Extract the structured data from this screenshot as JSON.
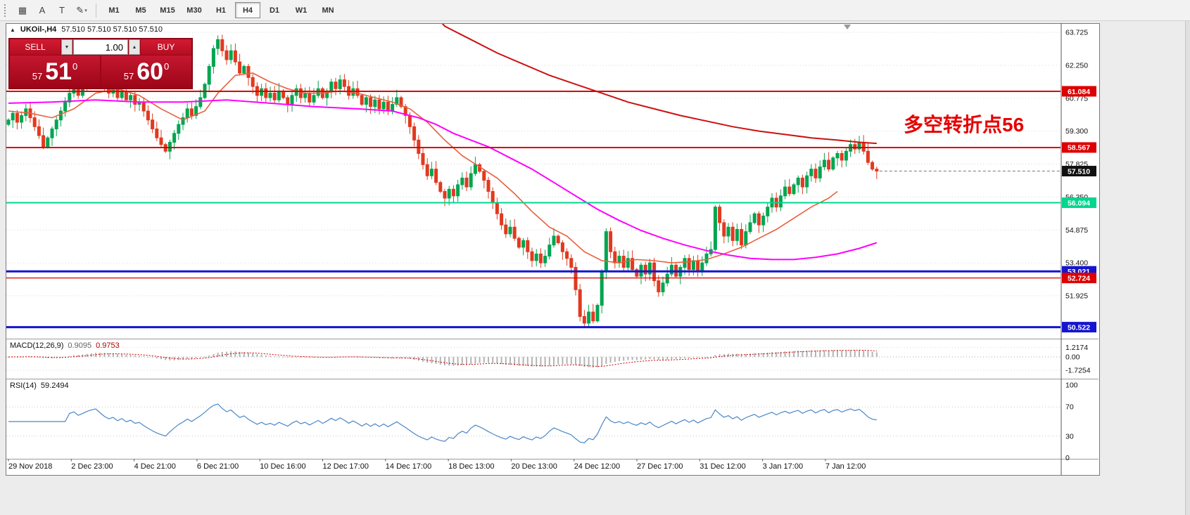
{
  "toolbar": {
    "icons": [
      {
        "name": "chart-grid-icon",
        "glyph": "▦"
      },
      {
        "name": "cursor-arrow-icon",
        "glyph": "A"
      },
      {
        "name": "text-tool-icon",
        "glyph": "T"
      },
      {
        "name": "draw-tools-icon",
        "glyph": "✎",
        "dropdown": "▾"
      }
    ],
    "timeframes": [
      {
        "label": "M1",
        "active": false
      },
      {
        "label": "M5",
        "active": false
      },
      {
        "label": "M15",
        "active": false
      },
      {
        "label": "M30",
        "active": false
      },
      {
        "label": "H1",
        "active": false
      },
      {
        "label": "H4",
        "active": true
      },
      {
        "label": "D1",
        "active": false
      },
      {
        "label": "W1",
        "active": false
      },
      {
        "label": "MN",
        "active": false
      }
    ]
  },
  "chart": {
    "header": {
      "collapse_arrow": "▲",
      "symbol": "UKOil-,H4",
      "ohlc": "57.510 57.510 57.510 57.510"
    },
    "trade_panel": {
      "sell_label": "SELL",
      "buy_label": "BUY",
      "volume": "1.00",
      "spin_down": "▼",
      "spin_up": "▲",
      "sell_price": {
        "prefix": "57",
        "big": "51",
        "sup": "0"
      },
      "buy_price": {
        "prefix": "57",
        "big": "60",
        "sup": "0"
      }
    },
    "annotation": {
      "text": "多空转折点56",
      "color": "#e60000"
    },
    "current_price": {
      "value": "57.510",
      "badge_color": "#111111"
    },
    "levels": [
      {
        "price": 61.084,
        "label": "61.084",
        "color": "#dd0000",
        "width": 2
      },
      {
        "price": 58.567,
        "label": "58.567",
        "color": "#dd0000",
        "width": 2
      },
      {
        "price": 56.094,
        "label": "56.094",
        "color": "#00d68f",
        "width": 2
      },
      {
        "price": 53.021,
        "label": "53.021",
        "color": "#1515cf",
        "width": 3
      },
      {
        "price": 52.724,
        "label": "52.724",
        "color": "#dd0000",
        "width": 1.2
      },
      {
        "price": 50.522,
        "label": "50.522",
        "color": "#1515cf",
        "width": 3
      }
    ],
    "price_axis": {
      "ticks": [
        {
          "value": 63.725,
          "label": "63.725"
        },
        {
          "value": 62.25,
          "label": "62.250"
        },
        {
          "value": 60.775,
          "label": "60.775"
        },
        {
          "value": 59.3,
          "label": "59.300"
        },
        {
          "value": 57.825,
          "label": "57.825"
        },
        {
          "value": 56.35,
          "label": "56.350"
        },
        {
          "value": 54.875,
          "label": "54.875"
        },
        {
          "value": 53.4,
          "label": "53.400"
        },
        {
          "value": 51.925,
          "label": "51.925"
        },
        {
          "value": 50.45,
          "label": "50.450"
        }
      ]
    },
    "time_axis": {
      "labels": [
        "29 Nov 2018",
        "2 Dec 23:00",
        "4 Dec 21:00",
        "6 Dec 21:00",
        "10 Dec 16:00",
        "12 Dec 17:00",
        "14 Dec 17:00",
        "18 Dec 13:00",
        "20 Dec 13:00",
        "24 Dec 12:00",
        "27 Dec 17:00",
        "31 Dec 12:00",
        "3 Jan 17:00",
        "7 Jan 12:00"
      ]
    }
  },
  "macd": {
    "title": "MACD(12,26,9)",
    "value1": "0.9095",
    "value2": "0.9753",
    "axis": [
      {
        "v": 1.2174,
        "label": "1.2174"
      },
      {
        "v": 0,
        "label": "0.00"
      },
      {
        "v": -1.7254,
        "label": "-1.7254"
      }
    ],
    "params": {
      "fast": 12,
      "slow": 26,
      "signal": 9
    },
    "colors": {
      "histogram": "#b4b4b4",
      "signal": "#d00000"
    }
  },
  "rsi": {
    "title": "RSI(14)",
    "value": "59.2494",
    "period": 14,
    "axis": [
      {
        "v": 100,
        "label": "100"
      },
      {
        "v": 70,
        "label": "70"
      },
      {
        "v": 30,
        "label": "30"
      },
      {
        "v": 0,
        "label": "0"
      }
    ],
    "color": "#4a86c8"
  },
  "chart_data": {
    "type": "candlestick",
    "symbol": "UKOil-",
    "timeframe": "H4",
    "price_range": [
      50.0,
      64.3
    ],
    "bars": 200,
    "first_open": 59.6,
    "up_color": "#00a550",
    "down_color": "#e03a20",
    "closes": [
      59.8,
      60.1,
      59.7,
      60.0,
      60.3,
      59.9,
      59.5,
      59.1,
      58.6,
      59.0,
      59.4,
      59.8,
      60.2,
      60.6,
      61.0,
      61.3,
      60.9,
      61.2,
      61.6,
      61.9,
      62.1,
      61.7,
      61.3,
      61.0,
      61.2,
      60.8,
      61.1,
      60.7,
      60.9,
      60.5,
      60.6,
      60.2,
      59.8,
      59.4,
      59.0,
      58.7,
      58.4,
      58.8,
      59.2,
      59.6,
      59.9,
      60.3,
      60.0,
      60.4,
      60.8,
      61.4,
      62.2,
      63.0,
      63.4,
      62.9,
      62.5,
      62.9,
      62.4,
      61.9,
      62.2,
      61.7,
      61.3,
      60.9,
      61.2,
      60.8,
      61.0,
      60.7,
      61.1,
      60.8,
      60.5,
      60.9,
      61.2,
      60.8,
      61.0,
      60.6,
      60.9,
      61.2,
      60.8,
      61.1,
      61.5,
      61.2,
      61.6,
      61.3,
      60.9,
      61.2,
      60.9,
      60.5,
      60.8,
      60.4,
      60.7,
      60.3,
      60.6,
      60.2,
      60.5,
      60.8,
      60.4,
      60.0,
      59.5,
      58.9,
      58.3,
      57.8,
      57.3,
      57.6,
      57.0,
      56.6,
      56.3,
      56.7,
      56.4,
      56.9,
      57.2,
      56.8,
      57.4,
      57.8,
      57.5,
      57.1,
      56.6,
      56.1,
      55.6,
      55.1,
      54.7,
      55.0,
      54.5,
      54.1,
      54.4,
      53.9,
      53.5,
      53.8,
      53.4,
      53.7,
      54.2,
      54.6,
      54.3,
      53.9,
      53.6,
      53.2,
      52.2,
      51.0,
      50.7,
      51.2,
      50.8,
      51.5,
      53.0,
      54.8,
      53.9,
      53.4,
      53.7,
      53.2,
      53.6,
      53.1,
      52.8,
      53.3,
      52.9,
      53.4,
      52.6,
      52.1,
      52.5,
      52.9,
      53.3,
      52.8,
      53.2,
      53.6,
      53.1,
      53.5,
      53.0,
      53.4,
      53.8,
      54.0,
      55.9,
      55.2,
      54.6,
      55.0,
      54.4,
      54.9,
      54.2,
      54.8,
      55.2,
      55.6,
      55.1,
      55.5,
      55.9,
      56.3,
      55.9,
      56.4,
      56.8,
      56.5,
      56.9,
      57.2,
      56.8,
      57.3,
      57.6,
      57.2,
      57.7,
      58.0,
      57.6,
      58.1,
      58.3,
      58.0,
      58.4,
      58.7,
      58.5,
      58.8,
      58.4,
      57.9,
      57.6,
      57.51
    ],
    "ma_long_red": {
      "name": "long-term MA (descending)",
      "color": "#cc1111",
      "width": 2,
      "points": [
        [
          96,
          64.9
        ],
        [
          100,
          64.0
        ],
        [
          106,
          63.4
        ],
        [
          112,
          62.8
        ],
        [
          118,
          62.3
        ],
        [
          124,
          61.8
        ],
        [
          130,
          61.4
        ],
        [
          136,
          61.0
        ],
        [
          142,
          60.6
        ],
        [
          148,
          60.3
        ],
        [
          154,
          60.0
        ],
        [
          160,
          59.75
        ],
        [
          166,
          59.5
        ],
        [
          172,
          59.3
        ],
        [
          178,
          59.15
        ],
        [
          184,
          59.0
        ],
        [
          190,
          58.9
        ],
        [
          195,
          58.8
        ],
        [
          199,
          58.75
        ]
      ]
    },
    "ma_magenta": {
      "name": "medium MA",
      "color": "#ff00ff",
      "width": 2,
      "points": [
        [
          0,
          60.55
        ],
        [
          10,
          60.6
        ],
        [
          20,
          60.7
        ],
        [
          30,
          60.6
        ],
        [
          40,
          60.6
        ],
        [
          50,
          60.7
        ],
        [
          60,
          60.55
        ],
        [
          70,
          60.4
        ],
        [
          80,
          60.3
        ],
        [
          88,
          60.2
        ],
        [
          94,
          59.9
        ],
        [
          98,
          59.6
        ],
        [
          102,
          59.2
        ],
        [
          106,
          58.9
        ],
        [
          110,
          58.6
        ],
        [
          115,
          58.1
        ],
        [
          120,
          57.6
        ],
        [
          125,
          57.0
        ],
        [
          130,
          56.4
        ],
        [
          135,
          55.8
        ],
        [
          140,
          55.3
        ],
        [
          145,
          54.85
        ],
        [
          150,
          54.5
        ],
        [
          155,
          54.2
        ],
        [
          160,
          53.95
        ],
        [
          165,
          53.75
        ],
        [
          170,
          53.6
        ],
        [
          175,
          53.55
        ],
        [
          180,
          53.55
        ],
        [
          185,
          53.65
        ],
        [
          190,
          53.8
        ],
        [
          195,
          54.05
        ],
        [
          199,
          54.3
        ]
      ]
    },
    "ma_fast": {
      "name": "fast MA",
      "color": "#e8603c",
      "width": 1.6,
      "points": [
        [
          0,
          60.2
        ],
        [
          5,
          60.1
        ],
        [
          10,
          59.9
        ],
        [
          15,
          60.3
        ],
        [
          20,
          61.0
        ],
        [
          25,
          61.2
        ],
        [
          30,
          60.9
        ],
        [
          35,
          60.3
        ],
        [
          40,
          59.8
        ],
        [
          45,
          60.2
        ],
        [
          48,
          61.0
        ],
        [
          52,
          61.8
        ],
        [
          56,
          61.9
        ],
        [
          60,
          61.5
        ],
        [
          64,
          61.2
        ],
        [
          68,
          61.0
        ],
        [
          72,
          61.0
        ],
        [
          76,
          61.1
        ],
        [
          80,
          61.0
        ],
        [
          84,
          60.8
        ],
        [
          88,
          60.6
        ],
        [
          92,
          60.3
        ],
        [
          96,
          59.7
        ],
        [
          100,
          58.9
        ],
        [
          104,
          58.2
        ],
        [
          108,
          57.7
        ],
        [
          112,
          57.2
        ],
        [
          116,
          56.5
        ],
        [
          120,
          55.7
        ],
        [
          124,
          55.0
        ],
        [
          128,
          54.6
        ],
        [
          132,
          53.9
        ],
        [
          136,
          53.5
        ],
        [
          140,
          53.4
        ],
        [
          144,
          53.55
        ],
        [
          148,
          53.5
        ],
        [
          152,
          53.4
        ],
        [
          156,
          53.45
        ],
        [
          160,
          53.55
        ],
        [
          164,
          53.8
        ],
        [
          168,
          54.1
        ],
        [
          172,
          54.5
        ],
        [
          176,
          54.9
        ],
        [
          180,
          55.4
        ],
        [
          184,
          55.9
        ],
        [
          188,
          56.3
        ],
        [
          190,
          56.6
        ]
      ]
    }
  }
}
